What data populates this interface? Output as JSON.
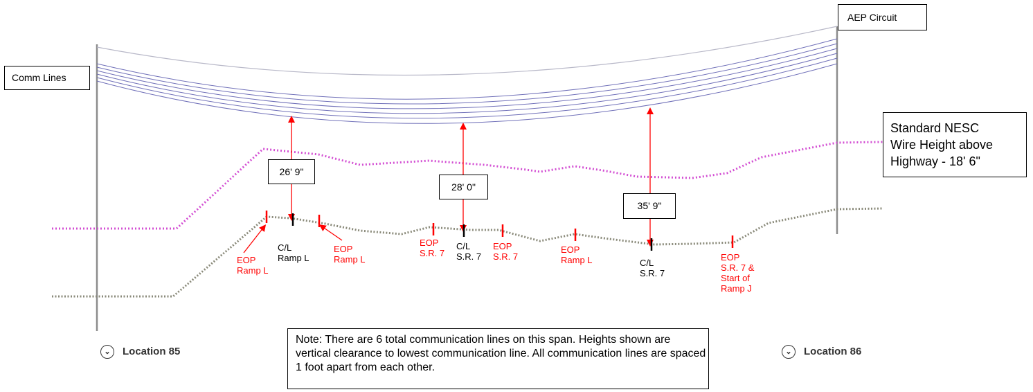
{
  "labels": {
    "aep_circuit": "AEP Circuit",
    "comm_lines": "Comm Lines",
    "nesc": "Standard NESC\nWire Height above\nHighway - 18' 6\""
  },
  "clearances": [
    {
      "label": "26' 9\""
    },
    {
      "label": "28' 0\""
    },
    {
      "label": "35' 9\""
    }
  ],
  "markers": [
    {
      "text": "EOP\nRamp L",
      "color": "#ff0000"
    },
    {
      "text": "C/L\nRamp L",
      "color": "#000000"
    },
    {
      "text": "EOP\nRamp L",
      "color": "#ff0000"
    },
    {
      "text": "EOP\nS.R. 7",
      "color": "#ff0000"
    },
    {
      "text": "C/L\nS.R. 7",
      "color": "#000000"
    },
    {
      "text": "EOP\nS.R. 7",
      "color": "#ff0000"
    },
    {
      "text": "EOP\nRamp L",
      "color": "#ff0000"
    },
    {
      "text": "C/L\nS.R. 7",
      "color": "#000000"
    },
    {
      "text": "EOP\nS.R. 7 &\nStart of\nRamp J",
      "color": "#ff0000"
    }
  ],
  "note": "Note: There are 6 total communication lines on this span. Heights shown are vertical clearance to lowest communication line. All communication lines are spaced 1 foot apart from each other.",
  "locations": {
    "left": "Location 85",
    "right": "Location 86"
  },
  "colors": {
    "comm_lines": "#6f6fb8",
    "nesc_line": "#d34fd3",
    "ground_line": "#8a8a7a",
    "dimension": "#ff0000",
    "pole": "#8c8c8c"
  },
  "icons": [
    "chevron-down-icon"
  ]
}
